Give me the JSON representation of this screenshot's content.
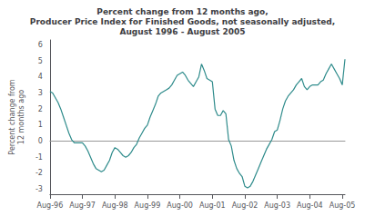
{
  "chart_data": {
    "type": "line",
    "title": "Percent change from 12 months ago,\nProducer Price Index for Finished Goods, not seasonally adjusted,\nAugust 1996 - August 2005",
    "y_label": "Percent change from\n12 months ago",
    "color": "#2e8b8b",
    "grid": false,
    "ylim": [
      -3.3,
      6.3
    ],
    "yticks": [
      -3,
      -2,
      -1,
      0,
      1,
      2,
      3,
      4,
      5,
      6
    ],
    "categories": [
      "Aug-96",
      null,
      null,
      null,
      null,
      null,
      null,
      null,
      null,
      null,
      null,
      null,
      "Aug-97",
      null,
      null,
      null,
      null,
      null,
      null,
      null,
      null,
      null,
      null,
      null,
      "Aug-98",
      null,
      null,
      null,
      null,
      null,
      null,
      null,
      null,
      null,
      null,
      null,
      "Aug-99",
      null,
      null,
      null,
      null,
      null,
      null,
      null,
      null,
      null,
      null,
      null,
      "Aug-00",
      null,
      null,
      null,
      null,
      null,
      null,
      null,
      null,
      null,
      null,
      null,
      "Aug-01",
      null,
      null,
      null,
      null,
      null,
      null,
      null,
      null,
      null,
      null,
      null,
      "Aug-02",
      null,
      null,
      null,
      null,
      null,
      null,
      null,
      null,
      null,
      null,
      null,
      "Aug-03",
      null,
      null,
      null,
      null,
      null,
      null,
      null,
      null,
      null,
      null,
      null,
      "Aug-04",
      null,
      null,
      null,
      null,
      null,
      null,
      null,
      null,
      null,
      null,
      null,
      "Aug-05",
      null
    ],
    "values": [
      3.1,
      3.0,
      2.7,
      2.4,
      2.0,
      1.5,
      1.0,
      0.5,
      0.1,
      -0.1,
      -0.1,
      -0.1,
      -0.1,
      -0.3,
      -0.6,
      -1.0,
      -1.4,
      -1.7,
      -1.8,
      -1.9,
      -1.8,
      -1.5,
      -1.2,
      -0.7,
      -0.4,
      -0.5,
      -0.7,
      -0.9,
      -1.0,
      -0.9,
      -0.7,
      -0.4,
      -0.2,
      0.2,
      0.5,
      0.8,
      1.0,
      1.5,
      1.9,
      2.3,
      2.8,
      3.0,
      3.1,
      3.2,
      3.3,
      3.5,
      3.8,
      4.1,
      4.2,
      4.3,
      4.1,
      3.8,
      3.6,
      3.4,
      3.7,
      4.0,
      4.8,
      4.4,
      3.9,
      3.8,
      3.7,
      2.0,
      1.6,
      1.6,
      1.9,
      1.7,
      0.1,
      -0.3,
      -1.2,
      -1.7,
      -2.0,
      -2.2,
      -2.8,
      -2.9,
      -2.8,
      -2.5,
      -2.1,
      -1.7,
      -1.3,
      -0.9,
      -0.5,
      -0.2,
      0.1,
      0.6,
      0.7,
      1.3,
      2.0,
      2.5,
      2.8,
      3.0,
      3.2,
      3.5,
      3.7,
      3.9,
      3.4,
      3.2,
      3.4,
      3.5,
      3.5,
      3.5,
      3.7,
      3.8,
      4.2,
      4.5,
      4.8,
      4.5,
      4.2,
      3.9,
      3.5,
      5.1
    ]
  }
}
